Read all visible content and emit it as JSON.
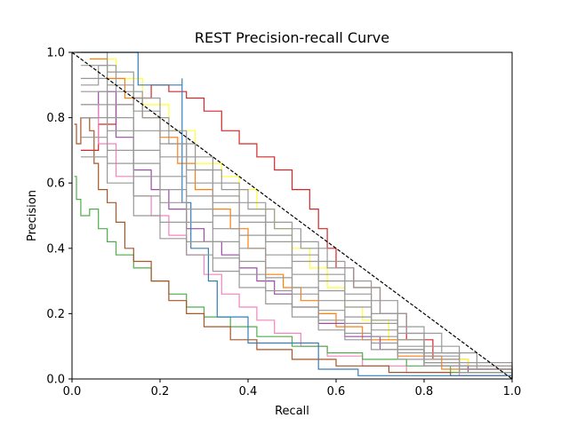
{
  "chart_data": {
    "type": "line",
    "title": "REST Precision-recall Curve",
    "xlabel": "Recall",
    "ylabel": "Precision",
    "xlim": [
      0.0,
      1.0
    ],
    "ylim": [
      0.0,
      1.0
    ],
    "xticks": [
      "0.0",
      "0.2",
      "0.4",
      "0.6",
      "0.8",
      "1.0"
    ],
    "yticks": [
      "0.0",
      "0.2",
      "0.4",
      "0.6",
      "0.8",
      "1.0"
    ],
    "grid": false,
    "legend": "none",
    "reference_line": {
      "style": "dashed",
      "color": "#000000",
      "points": [
        [
          0.0,
          1.0
        ],
        [
          1.0,
          0.0
        ]
      ]
    },
    "series": [
      {
        "color": "#d62728",
        "points": [
          [
            0.02,
            0.7
          ],
          [
            0.06,
            0.78
          ],
          [
            0.1,
            0.84
          ],
          [
            0.14,
            0.86
          ],
          [
            0.18,
            0.9
          ],
          [
            0.22,
            0.88
          ],
          [
            0.26,
            0.86
          ],
          [
            0.3,
            0.82
          ],
          [
            0.34,
            0.76
          ],
          [
            0.38,
            0.72
          ],
          [
            0.42,
            0.68
          ],
          [
            0.46,
            0.64
          ],
          [
            0.5,
            0.58
          ],
          [
            0.54,
            0.52
          ],
          [
            0.56,
            0.46
          ],
          [
            0.58,
            0.4
          ],
          [
            0.6,
            0.34
          ],
          [
            0.64,
            0.28
          ],
          [
            0.7,
            0.2
          ],
          [
            0.76,
            0.12
          ],
          [
            0.82,
            0.06
          ],
          [
            0.9,
            0.03
          ],
          [
            1.0,
            0.0
          ]
        ]
      },
      {
        "color": "#ffff33",
        "points": [
          [
            0.04,
            0.98
          ],
          [
            0.1,
            0.92
          ],
          [
            0.16,
            0.84
          ],
          [
            0.22,
            0.76
          ],
          [
            0.28,
            0.66
          ],
          [
            0.34,
            0.62
          ],
          [
            0.38,
            0.58
          ],
          [
            0.42,
            0.52
          ],
          [
            0.46,
            0.46
          ],
          [
            0.5,
            0.4
          ],
          [
            0.54,
            0.34
          ],
          [
            0.58,
            0.28
          ],
          [
            0.62,
            0.22
          ],
          [
            0.66,
            0.18
          ],
          [
            0.72,
            0.12
          ],
          [
            0.8,
            0.06
          ],
          [
            0.9,
            0.02
          ],
          [
            1.0,
            0.0
          ]
        ]
      },
      {
        "color": "#ff7f0e",
        "points": [
          [
            0.04,
            0.98
          ],
          [
            0.08,
            0.92
          ],
          [
            0.12,
            0.86
          ],
          [
            0.16,
            0.8
          ],
          [
            0.2,
            0.74
          ],
          [
            0.24,
            0.66
          ],
          [
            0.28,
            0.58
          ],
          [
            0.32,
            0.52
          ],
          [
            0.36,
            0.46
          ],
          [
            0.4,
            0.4
          ],
          [
            0.44,
            0.32
          ],
          [
            0.48,
            0.28
          ],
          [
            0.52,
            0.24
          ],
          [
            0.56,
            0.2
          ],
          [
            0.6,
            0.16
          ],
          [
            0.66,
            0.12
          ],
          [
            0.74,
            0.07
          ],
          [
            0.84,
            0.03
          ],
          [
            1.0,
            0.0
          ]
        ]
      },
      {
        "color": "#984ea3",
        "points": [
          [
            0.02,
            0.8
          ],
          [
            0.06,
            0.88
          ],
          [
            0.1,
            0.74
          ],
          [
            0.14,
            0.64
          ],
          [
            0.18,
            0.58
          ],
          [
            0.22,
            0.52
          ],
          [
            0.26,
            0.46
          ],
          [
            0.3,
            0.42
          ],
          [
            0.34,
            0.38
          ],
          [
            0.38,
            0.34
          ],
          [
            0.42,
            0.3
          ],
          [
            0.46,
            0.26
          ],
          [
            0.5,
            0.22
          ],
          [
            0.56,
            0.17
          ],
          [
            0.62,
            0.13
          ],
          [
            0.7,
            0.09
          ],
          [
            0.8,
            0.04
          ],
          [
            0.9,
            0.02
          ],
          [
            1.0,
            0.0
          ]
        ]
      },
      {
        "color": "#f781bf",
        "points": [
          [
            0.02,
            0.84
          ],
          [
            0.06,
            0.72
          ],
          [
            0.1,
            0.62
          ],
          [
            0.14,
            0.56
          ],
          [
            0.18,
            0.5
          ],
          [
            0.22,
            0.44
          ],
          [
            0.26,
            0.38
          ],
          [
            0.3,
            0.32
          ],
          [
            0.34,
            0.26
          ],
          [
            0.38,
            0.22
          ],
          [
            0.42,
            0.18
          ],
          [
            0.46,
            0.14
          ],
          [
            0.52,
            0.1
          ],
          [
            0.58,
            0.07
          ],
          [
            0.66,
            0.04
          ],
          [
            0.76,
            0.02
          ],
          [
            0.88,
            0.01
          ],
          [
            1.0,
            0.0
          ]
        ]
      },
      {
        "color": "#4daf4a",
        "points": [
          [
            0.005,
            0.62
          ],
          [
            0.01,
            0.55
          ],
          [
            0.02,
            0.5
          ],
          [
            0.04,
            0.52
          ],
          [
            0.06,
            0.46
          ],
          [
            0.08,
            0.42
          ],
          [
            0.1,
            0.38
          ],
          [
            0.14,
            0.34
          ],
          [
            0.18,
            0.3
          ],
          [
            0.22,
            0.26
          ],
          [
            0.26,
            0.22
          ],
          [
            0.3,
            0.19
          ],
          [
            0.36,
            0.16
          ],
          [
            0.42,
            0.13
          ],
          [
            0.5,
            0.1
          ],
          [
            0.58,
            0.08
          ],
          [
            0.66,
            0.06
          ],
          [
            0.76,
            0.04
          ],
          [
            0.86,
            0.02
          ],
          [
            1.0,
            0.0
          ]
        ]
      },
      {
        "color": "#a65628",
        "points": [
          [
            0.005,
            0.78
          ],
          [
            0.01,
            0.72
          ],
          [
            0.02,
            0.8
          ],
          [
            0.04,
            0.76
          ],
          [
            0.05,
            0.66
          ],
          [
            0.06,
            0.58
          ],
          [
            0.08,
            0.54
          ],
          [
            0.1,
            0.48
          ],
          [
            0.12,
            0.4
          ],
          [
            0.14,
            0.36
          ],
          [
            0.18,
            0.3
          ],
          [
            0.22,
            0.24
          ],
          [
            0.26,
            0.2
          ],
          [
            0.3,
            0.16
          ],
          [
            0.36,
            0.12
          ],
          [
            0.42,
            0.09
          ],
          [
            0.5,
            0.06
          ],
          [
            0.6,
            0.04
          ],
          [
            0.72,
            0.02
          ],
          [
            0.86,
            0.01
          ],
          [
            1.0,
            0.0
          ]
        ]
      },
      {
        "color": "#377eb8",
        "points": [
          [
            0.01,
            1.0
          ],
          [
            0.15,
            1.0
          ],
          [
            0.15,
            0.9
          ],
          [
            0.25,
            0.92
          ],
          [
            0.25,
            0.54
          ],
          [
            0.27,
            0.54
          ],
          [
            0.27,
            0.4
          ],
          [
            0.31,
            0.4
          ],
          [
            0.31,
            0.3
          ],
          [
            0.33,
            0.3
          ],
          [
            0.33,
            0.19
          ],
          [
            0.4,
            0.19
          ],
          [
            0.4,
            0.11
          ],
          [
            0.56,
            0.11
          ],
          [
            0.56,
            0.03
          ],
          [
            0.65,
            0.03
          ],
          [
            0.65,
            0.01
          ],
          [
            1.0,
            0.0
          ]
        ]
      },
      {
        "color": "#999999",
        "points": [
          [
            0.02,
            1.0
          ],
          [
            0.08,
            0.94
          ],
          [
            0.14,
            0.86
          ],
          [
            0.2,
            0.76
          ],
          [
            0.26,
            0.68
          ],
          [
            0.32,
            0.6
          ],
          [
            0.38,
            0.54
          ],
          [
            0.44,
            0.48
          ],
          [
            0.5,
            0.42
          ],
          [
            0.56,
            0.36
          ],
          [
            0.62,
            0.3
          ],
          [
            0.68,
            0.24
          ],
          [
            0.74,
            0.16
          ],
          [
            0.8,
            0.1
          ],
          [
            0.88,
            0.05
          ],
          [
            1.0,
            0.0
          ]
        ]
      },
      {
        "color": "#999999",
        "points": [
          [
            0.02,
            0.96
          ],
          [
            0.08,
            0.9
          ],
          [
            0.14,
            0.82
          ],
          [
            0.2,
            0.72
          ],
          [
            0.26,
            0.64
          ],
          [
            0.32,
            0.56
          ],
          [
            0.38,
            0.5
          ],
          [
            0.44,
            0.44
          ],
          [
            0.5,
            0.38
          ],
          [
            0.56,
            0.32
          ],
          [
            0.62,
            0.26
          ],
          [
            0.68,
            0.2
          ],
          [
            0.74,
            0.14
          ],
          [
            0.8,
            0.08
          ],
          [
            0.88,
            0.04
          ],
          [
            1.0,
            0.0
          ]
        ]
      },
      {
        "color": "#999999",
        "points": [
          [
            0.02,
            0.92
          ],
          [
            0.08,
            0.84
          ],
          [
            0.14,
            0.76
          ],
          [
            0.2,
            0.68
          ],
          [
            0.26,
            0.6
          ],
          [
            0.32,
            0.54
          ],
          [
            0.38,
            0.48
          ],
          [
            0.44,
            0.42
          ],
          [
            0.5,
            0.36
          ],
          [
            0.56,
            0.3
          ],
          [
            0.62,
            0.24
          ],
          [
            0.68,
            0.18
          ],
          [
            0.74,
            0.12
          ],
          [
            0.8,
            0.08
          ],
          [
            0.88,
            0.04
          ],
          [
            1.0,
            0.0
          ]
        ]
      },
      {
        "color": "#999999",
        "points": [
          [
            0.02,
            0.88
          ],
          [
            0.08,
            0.8
          ],
          [
            0.14,
            0.7
          ],
          [
            0.2,
            0.62
          ],
          [
            0.26,
            0.56
          ],
          [
            0.32,
            0.5
          ],
          [
            0.38,
            0.44
          ],
          [
            0.44,
            0.38
          ],
          [
            0.5,
            0.32
          ],
          [
            0.56,
            0.27
          ],
          [
            0.62,
            0.22
          ],
          [
            0.68,
            0.17
          ],
          [
            0.74,
            0.12
          ],
          [
            0.8,
            0.07
          ],
          [
            0.88,
            0.03
          ],
          [
            1.0,
            0.0
          ]
        ]
      },
      {
        "color": "#999999",
        "points": [
          [
            0.02,
            0.84
          ],
          [
            0.08,
            0.76
          ],
          [
            0.14,
            0.66
          ],
          [
            0.2,
            0.58
          ],
          [
            0.26,
            0.52
          ],
          [
            0.32,
            0.46
          ],
          [
            0.38,
            0.4
          ],
          [
            0.44,
            0.34
          ],
          [
            0.5,
            0.28
          ],
          [
            0.56,
            0.24
          ],
          [
            0.62,
            0.19
          ],
          [
            0.68,
            0.15
          ],
          [
            0.74,
            0.1
          ],
          [
            0.8,
            0.06
          ],
          [
            0.88,
            0.03
          ],
          [
            1.0,
            0.0
          ]
        ]
      },
      {
        "color": "#999999",
        "points": [
          [
            0.02,
            0.8
          ],
          [
            0.08,
            0.7
          ],
          [
            0.14,
            0.62
          ],
          [
            0.2,
            0.54
          ],
          [
            0.26,
            0.48
          ],
          [
            0.32,
            0.42
          ],
          [
            0.38,
            0.36
          ],
          [
            0.44,
            0.31
          ],
          [
            0.5,
            0.26
          ],
          [
            0.56,
            0.21
          ],
          [
            0.62,
            0.17
          ],
          [
            0.68,
            0.13
          ],
          [
            0.74,
            0.09
          ],
          [
            0.8,
            0.05
          ],
          [
            0.88,
            0.02
          ],
          [
            1.0,
            0.0
          ]
        ]
      },
      {
        "color": "#999999",
        "points": [
          [
            0.02,
            0.74
          ],
          [
            0.08,
            0.66
          ],
          [
            0.14,
            0.56
          ],
          [
            0.2,
            0.48
          ],
          [
            0.26,
            0.42
          ],
          [
            0.32,
            0.37
          ],
          [
            0.38,
            0.32
          ],
          [
            0.44,
            0.27
          ],
          [
            0.5,
            0.22
          ],
          [
            0.56,
            0.18
          ],
          [
            0.62,
            0.14
          ],
          [
            0.68,
            0.11
          ],
          [
            0.74,
            0.08
          ],
          [
            0.8,
            0.05
          ],
          [
            0.88,
            0.02
          ],
          [
            1.0,
            0.0
          ]
        ]
      },
      {
        "color": "#999999",
        "points": [
          [
            0.02,
            0.68
          ],
          [
            0.08,
            0.6
          ],
          [
            0.14,
            0.5
          ],
          [
            0.2,
            0.43
          ],
          [
            0.26,
            0.38
          ],
          [
            0.32,
            0.33
          ],
          [
            0.38,
            0.28
          ],
          [
            0.44,
            0.23
          ],
          [
            0.5,
            0.19
          ],
          [
            0.56,
            0.15
          ],
          [
            0.62,
            0.12
          ],
          [
            0.68,
            0.09
          ],
          [
            0.74,
            0.06
          ],
          [
            0.8,
            0.04
          ],
          [
            0.88,
            0.02
          ],
          [
            1.0,
            0.0
          ]
        ]
      },
      {
        "color": "#999999",
        "points": [
          [
            0.02,
            0.9
          ],
          [
            0.06,
            0.96
          ],
          [
            0.1,
            0.88
          ],
          [
            0.16,
            0.8
          ],
          [
            0.22,
            0.72
          ],
          [
            0.28,
            0.64
          ],
          [
            0.34,
            0.58
          ],
          [
            0.4,
            0.52
          ],
          [
            0.46,
            0.46
          ],
          [
            0.52,
            0.4
          ],
          [
            0.58,
            0.34
          ],
          [
            0.64,
            0.28
          ],
          [
            0.7,
            0.2
          ],
          [
            0.76,
            0.14
          ],
          [
            0.84,
            0.08
          ],
          [
            0.92,
            0.03
          ],
          [
            1.0,
            0.0
          ]
        ]
      }
    ]
  }
}
